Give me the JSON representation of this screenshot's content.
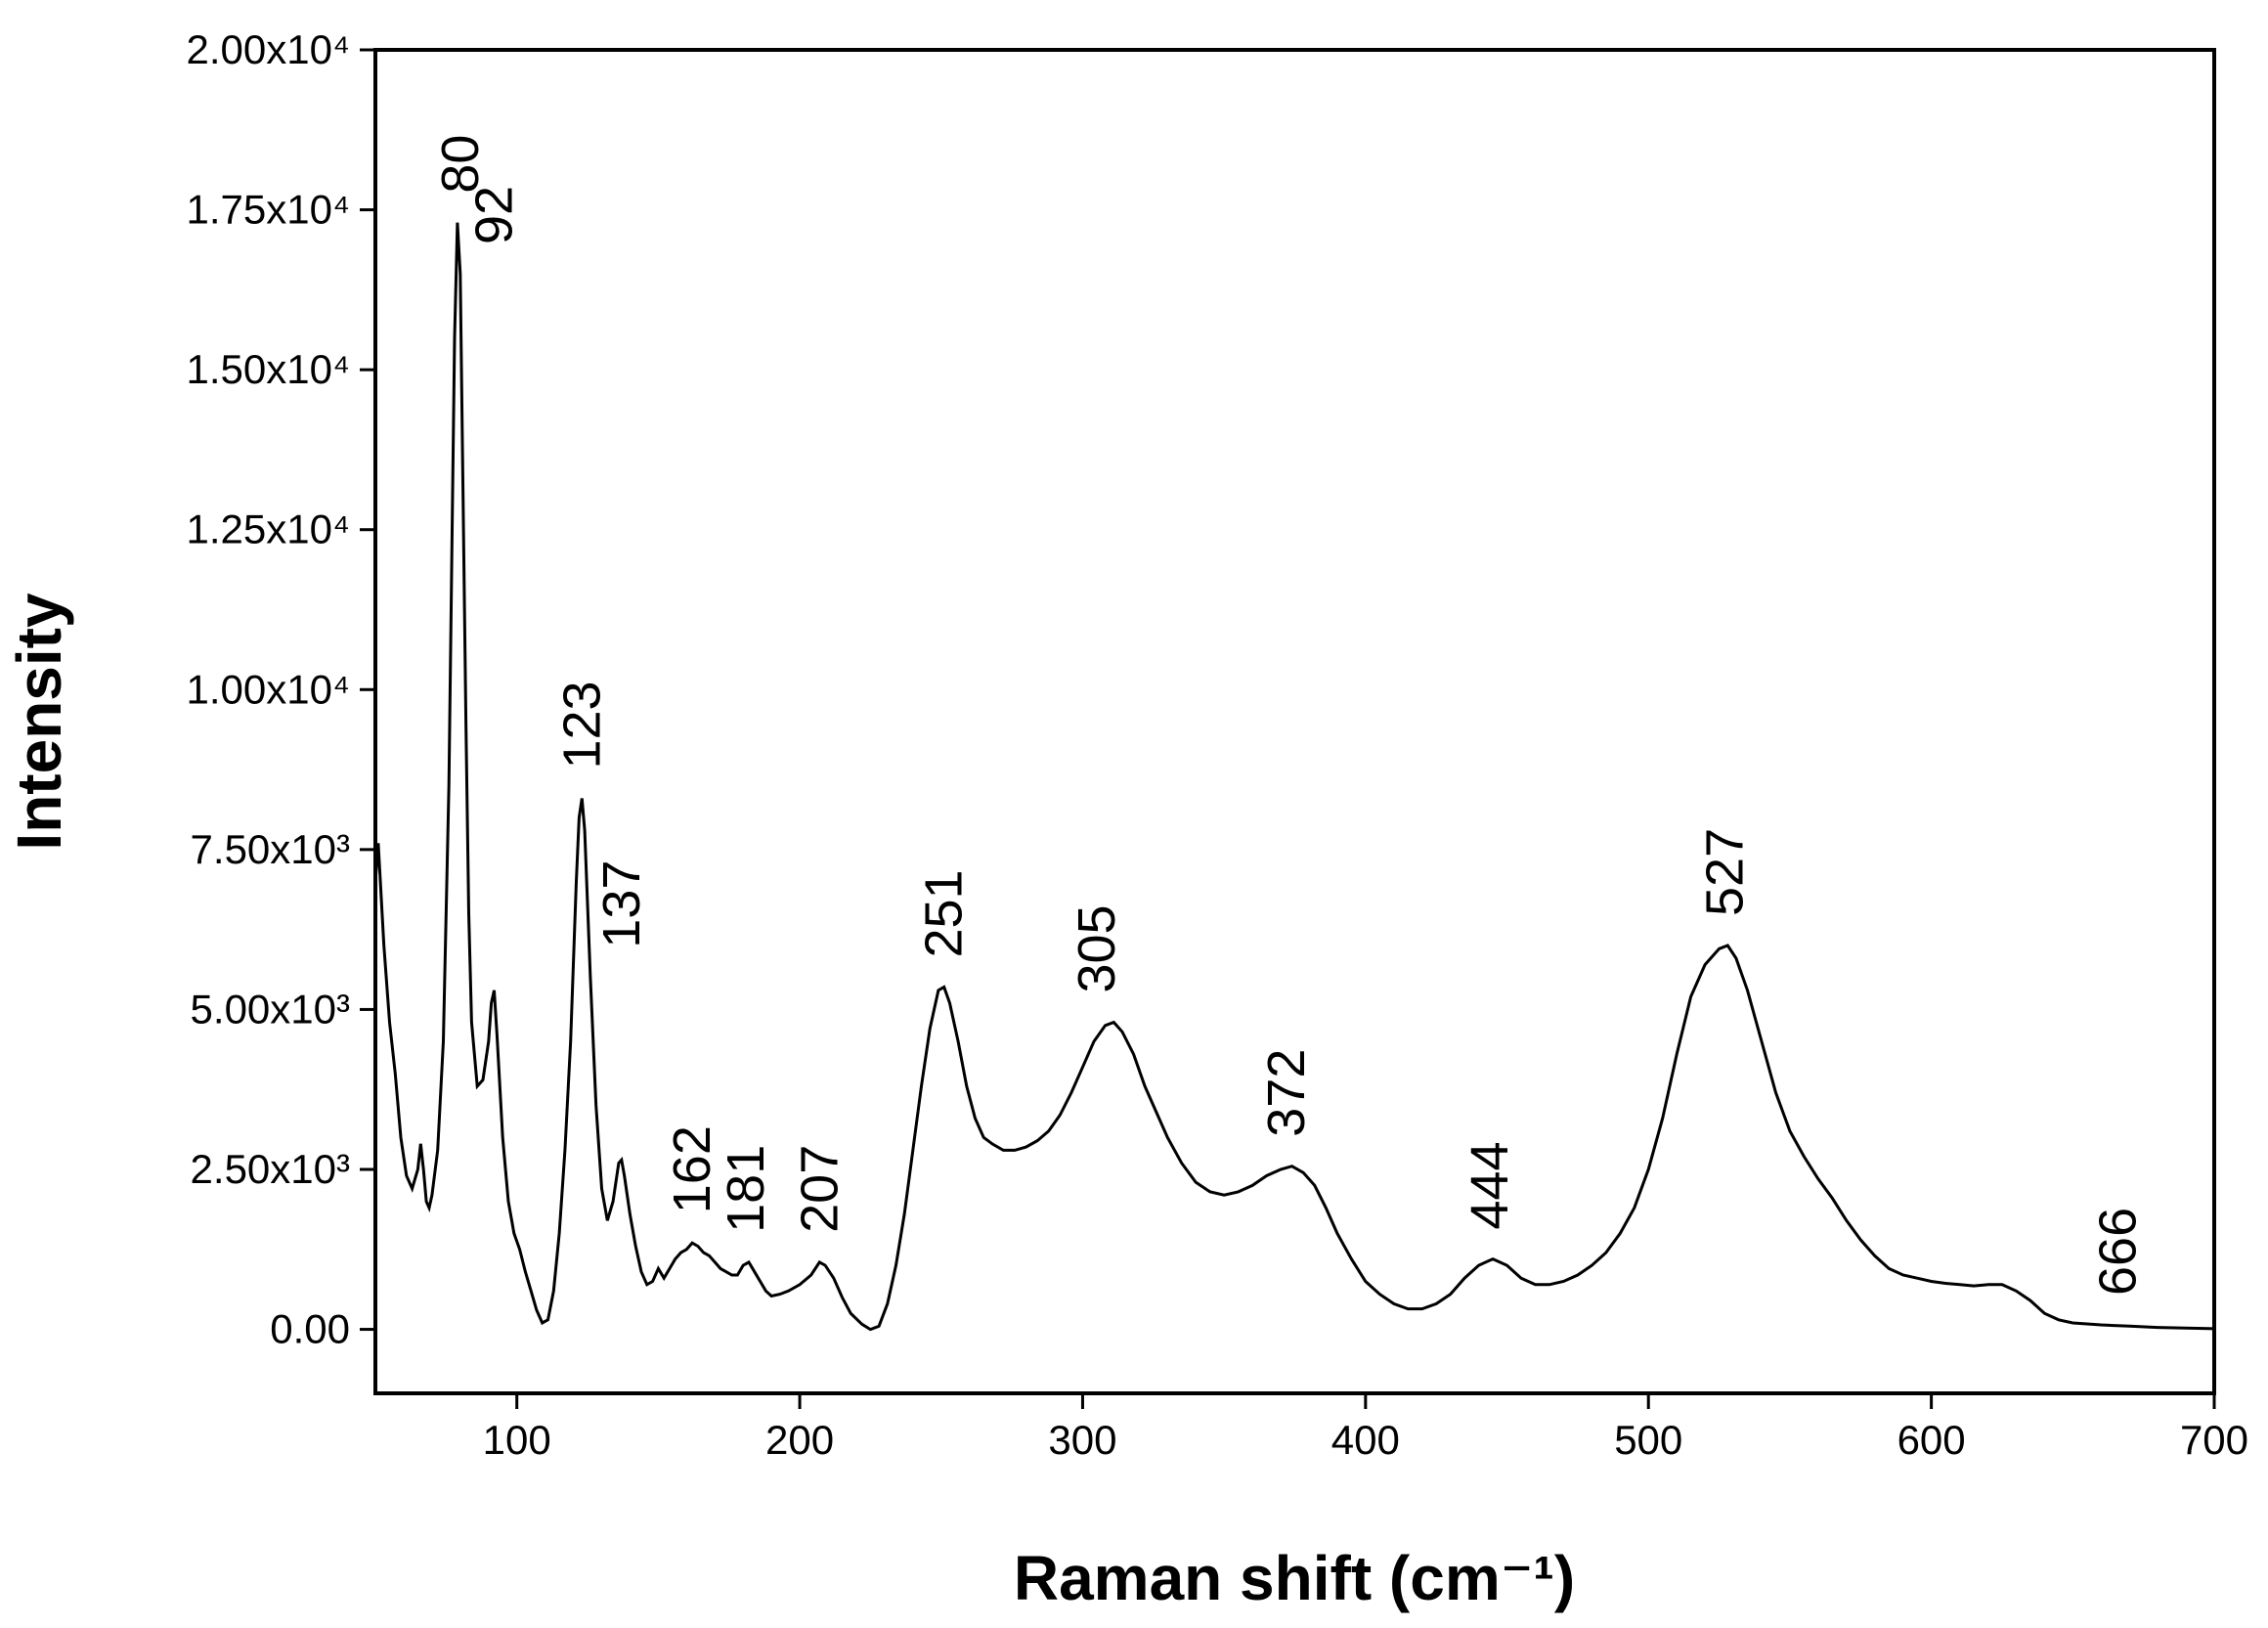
{
  "chart_data": {
    "type": "line",
    "xlabel": "Raman shift (cm⁻¹)",
    "ylabel": "Intensity",
    "color": "#000000",
    "xlim": [
      50,
      700
    ],
    "xticks": [
      100,
      200,
      300,
      400,
      500,
      600,
      700
    ],
    "ylim": [
      -1000,
      20000
    ],
    "yticks": [
      {
        "value": 0,
        "label": "0.00"
      },
      {
        "value": 2500,
        "label": "2.50x10³"
      },
      {
        "value": 5000,
        "label": "5.00x10³"
      },
      {
        "value": 7500,
        "label": "7.50x10³"
      },
      {
        "value": 10000,
        "label": "1.00x10⁴"
      },
      {
        "value": 12500,
        "label": "1.25x10⁴"
      },
      {
        "value": 15000,
        "label": "1.50x10⁴"
      },
      {
        "value": 17500,
        "label": "1.75x10⁴"
      },
      {
        "value": 20000,
        "label": "2.00x10⁴"
      }
    ],
    "peak_labels": [
      80,
      92,
      123,
      137,
      162,
      181,
      207,
      251,
      305,
      372,
      444,
      527,
      666
    ],
    "x": [
      50,
      51,
      53,
      55,
      57,
      59,
      61,
      63,
      65,
      66,
      67,
      68,
      69,
      70,
      72,
      74,
      76,
      77,
      78,
      79,
      80,
      81,
      82,
      83,
      84,
      86,
      88,
      90,
      91,
      92,
      93,
      95,
      97,
      99,
      101,
      103,
      105,
      107,
      109,
      111,
      113,
      115,
      117,
      119,
      121,
      122,
      123,
      124,
      126,
      128,
      130,
      132,
      134,
      136,
      137,
      138,
      140,
      142,
      144,
      146,
      148,
      150,
      152,
      154,
      156,
      158,
      160,
      162,
      164,
      166,
      168,
      170,
      172,
      174,
      176,
      178,
      180,
      182,
      184,
      186,
      188,
      190,
      193,
      196,
      200,
      204,
      207,
      209,
      212,
      215,
      218,
      222,
      225,
      228,
      231,
      234,
      237,
      240,
      243,
      246,
      249,
      251,
      253,
      256,
      259,
      262,
      265,
      268,
      272,
      276,
      280,
      284,
      288,
      292,
      296,
      300,
      304,
      308,
      311,
      314,
      318,
      322,
      326,
      330,
      335,
      340,
      345,
      350,
      355,
      360,
      365,
      370,
      374,
      378,
      382,
      386,
      390,
      395,
      400,
      405,
      410,
      415,
      420,
      425,
      430,
      435,
      440,
      445,
      450,
      455,
      460,
      465,
      470,
      475,
      480,
      485,
      490,
      495,
      500,
      505,
      510,
      515,
      520,
      525,
      528,
      531,
      535,
      540,
      545,
      550,
      555,
      560,
      565,
      570,
      575,
      580,
      585,
      590,
      595,
      600,
      605,
      610,
      615,
      620,
      625,
      630,
      635,
      640,
      645,
      650,
      660,
      670,
      680,
      690,
      700
    ],
    "values": [
      7000,
      7600,
      6000,
      4800,
      4000,
      3000,
      2400,
      2200,
      2500,
      2900,
      2500,
      2000,
      1900,
      2100,
      2800,
      4500,
      8500,
      12000,
      15500,
      17300,
      16500,
      13000,
      9500,
      6500,
      4800,
      3800,
      3900,
      4500,
      5100,
      5300,
      4600,
      3000,
      2000,
      1500,
      1250,
      900,
      600,
      300,
      100,
      150,
      600,
      1500,
      2800,
      4500,
      7000,
      8000,
      8300,
      7800,
      5500,
      3500,
      2200,
      1700,
      2000,
      2600,
      2650,
      2400,
      1800,
      1300,
      900,
      700,
      750,
      950,
      800,
      950,
      1100,
      1200,
      1250,
      1350,
      1300,
      1200,
      1150,
      1050,
      950,
      900,
      850,
      850,
      1000,
      1050,
      900,
      750,
      600,
      520,
      550,
      600,
      700,
      850,
      1050,
      1000,
      800,
      500,
      250,
      80,
      0,
      50,
      400,
      1000,
      1800,
      2800,
      3800,
      4700,
      5300,
      5350,
      5100,
      4500,
      3800,
      3300,
      3000,
      2900,
      2800,
      2800,
      2850,
      2950,
      3100,
      3350,
      3700,
      4100,
      4500,
      4750,
      4800,
      4650,
      4300,
      3800,
      3400,
      3000,
      2600,
      2300,
      2150,
      2100,
      2150,
      2250,
      2400,
      2500,
      2550,
      2450,
      2250,
      1900,
      1500,
      1100,
      750,
      550,
      400,
      320,
      320,
      400,
      550,
      800,
      1000,
      1100,
      1000,
      800,
      700,
      700,
      750,
      850,
      1000,
      1200,
      1500,
      1900,
      2500,
      3300,
      4300,
      5200,
      5700,
      5950,
      6000,
      5800,
      5300,
      4500,
      3700,
      3100,
      2700,
      2350,
      2050,
      1700,
      1400,
      1150,
      950,
      850,
      800,
      750,
      720,
      700,
      680,
      700,
      700,
      600,
      450,
      250,
      150,
      100,
      70,
      50,
      30,
      20,
      10
    ]
  }
}
